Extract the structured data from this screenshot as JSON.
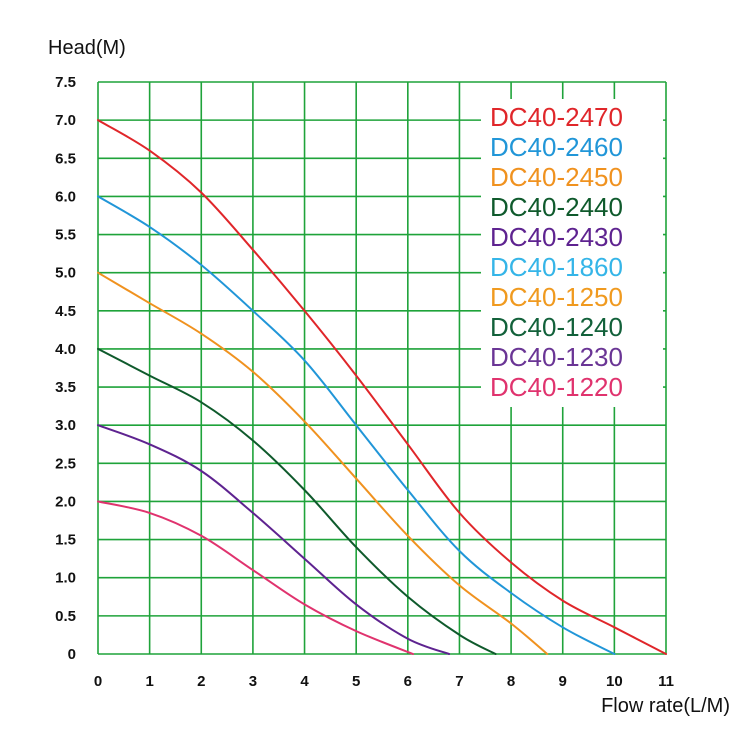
{
  "chart_data": {
    "type": "line",
    "xlabel": "Flow rate(L/M)",
    "ylabel": "Head(M)",
    "xlim": [
      0,
      11
    ],
    "ylim": [
      0,
      7.5
    ],
    "x_ticks": [
      "0",
      "1",
      "2",
      "3",
      "4",
      "5",
      "6",
      "7",
      "8",
      "9",
      "10",
      "11"
    ],
    "y_ticks": [
      "0",
      "0.5",
      "1.0",
      "1.5",
      "2.0",
      "2.5",
      "3.0",
      "3.5",
      "4.0",
      "4.5",
      "5.0",
      "5.5",
      "6.0",
      "6.5",
      "7.0",
      "7.5"
    ],
    "grid": true,
    "grid_color": "#1fa33a",
    "legend_position": "top-right",
    "series": [
      {
        "name": "DC40-2470",
        "color": "#e0262a",
        "points": [
          [
            0,
            7.0
          ],
          [
            1,
            6.6
          ],
          [
            2,
            6.05
          ],
          [
            3,
            5.3
          ],
          [
            4,
            4.5
          ],
          [
            5,
            3.65
          ],
          [
            6,
            2.75
          ],
          [
            7,
            1.85
          ],
          [
            8,
            1.2
          ],
          [
            9,
            0.7
          ],
          [
            10,
            0.35
          ],
          [
            11,
            0
          ]
        ]
      },
      {
        "name": "DC40-2460",
        "color": "#2196d8",
        "points": [
          [
            0,
            6.0
          ],
          [
            1,
            5.6
          ],
          [
            2,
            5.1
          ],
          [
            3,
            4.5
          ],
          [
            4,
            3.85
          ],
          [
            5,
            3.0
          ],
          [
            6,
            2.15
          ],
          [
            7,
            1.35
          ],
          [
            8,
            0.8
          ],
          [
            9,
            0.35
          ],
          [
            10,
            0
          ]
        ]
      },
      {
        "name": "DC40-2450",
        "color": "#f0921f",
        "points": [
          [
            0,
            5.0
          ],
          [
            1,
            4.6
          ],
          [
            2,
            4.2
          ],
          [
            3,
            3.7
          ],
          [
            4,
            3.05
          ],
          [
            5,
            2.3
          ],
          [
            6,
            1.55
          ],
          [
            7,
            0.9
          ],
          [
            8,
            0.4
          ],
          [
            8.7,
            0
          ]
        ]
      },
      {
        "name": "DC40-2440",
        "color": "#0f5a2c",
        "points": [
          [
            0,
            4.0
          ],
          [
            1,
            3.65
          ],
          [
            2,
            3.3
          ],
          [
            3,
            2.8
          ],
          [
            4,
            2.15
          ],
          [
            5,
            1.4
          ],
          [
            6,
            0.75
          ],
          [
            7,
            0.25
          ],
          [
            7.7,
            0
          ]
        ]
      },
      {
        "name": "DC40-2430",
        "color": "#5e2390",
        "points": [
          [
            0,
            3.0
          ],
          [
            1,
            2.75
          ],
          [
            2,
            2.4
          ],
          [
            3,
            1.85
          ],
          [
            4,
            1.25
          ],
          [
            5,
            0.65
          ],
          [
            6,
            0.2
          ],
          [
            6.8,
            0
          ]
        ]
      },
      {
        "name": "DC40-1860",
        "color": "#35b5e8",
        "points": []
      },
      {
        "name": "DC40-1250",
        "color": "#f09a1f",
        "points": []
      },
      {
        "name": "DC40-1240",
        "color": "#12613a",
        "points": []
      },
      {
        "name": "DC40-1230",
        "color": "#6a3595",
        "points": []
      },
      {
        "name": "DC40-1220",
        "color": "#e0336e",
        "points": [
          [
            0,
            2.0
          ],
          [
            1,
            1.85
          ],
          [
            2,
            1.55
          ],
          [
            3,
            1.1
          ],
          [
            4,
            0.65
          ],
          [
            5,
            0.3
          ],
          [
            6.1,
            0
          ]
        ]
      }
    ]
  }
}
